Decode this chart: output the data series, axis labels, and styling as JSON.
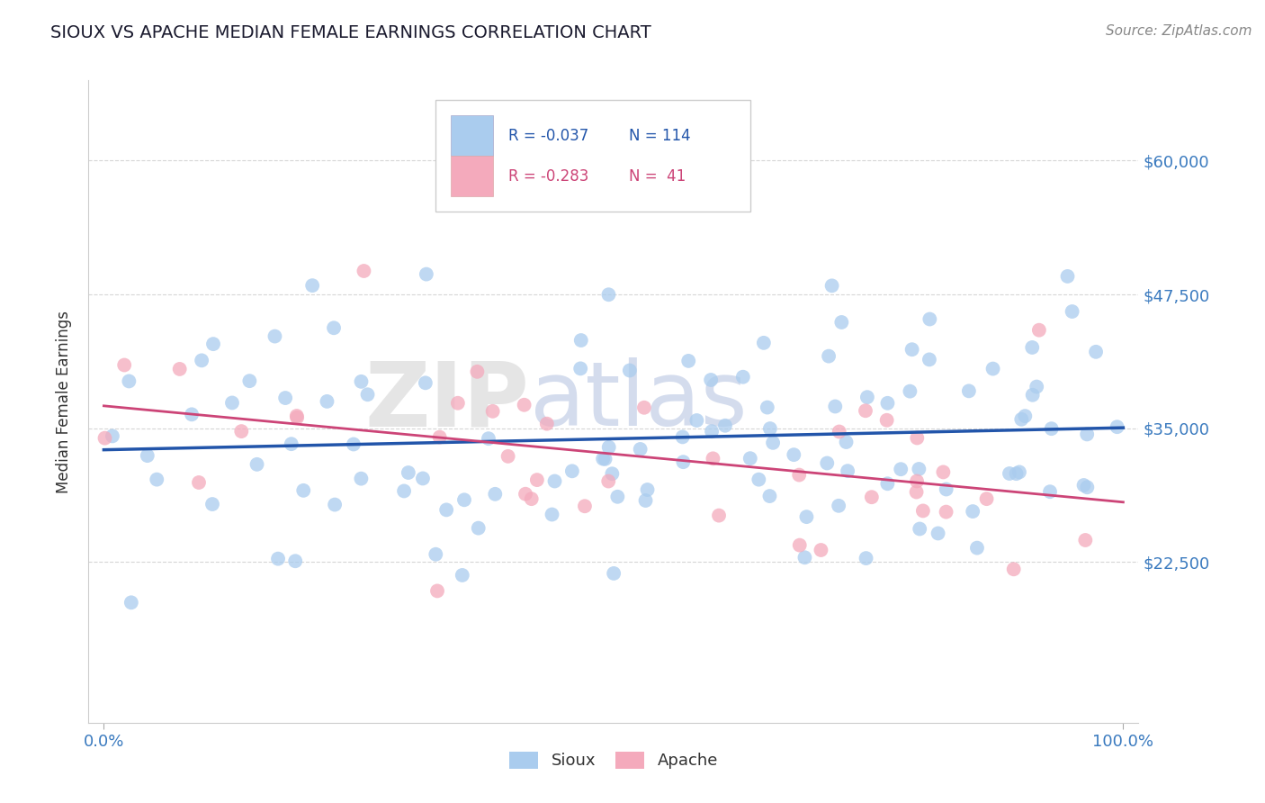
{
  "title": "SIOUX VS APACHE MEDIAN FEMALE EARNINGS CORRELATION CHART",
  "source_text": "Source: ZipAtlas.com",
  "ylabel": "Median Female Earnings",
  "y_min": 7500,
  "y_max": 67500,
  "yticks": [
    22500,
    35000,
    47500,
    60000
  ],
  "ytick_labels": [
    "$22,500",
    "$35,000",
    "$47,500",
    "$60,000"
  ],
  "xtick_labels": [
    "0.0%",
    "100.0%"
  ],
  "title_color": "#1a1a2e",
  "axis_label_color": "#333333",
  "tick_color": "#3a7abf",
  "grid_color": "#cccccc",
  "legend_r1": "R = -0.037",
  "legend_n1": "N = 114",
  "legend_r2": "R = -0.283",
  "legend_n2": "N =  41",
  "legend_color1": "#aaccee",
  "legend_color2": "#f4aabc",
  "line_color1": "#2255aa",
  "line_color2": "#cc4477",
  "sioux_color": "#aaccee",
  "apache_color": "#f4aabc",
  "sioux_alpha": 0.75,
  "apache_alpha": 0.75,
  "dot_size": 130,
  "watermark_zip": "ZIP",
  "watermark_atlas": "atlas",
  "watermark_color_zip": "#cccccc",
  "watermark_color_atlas": "#aabbdd"
}
